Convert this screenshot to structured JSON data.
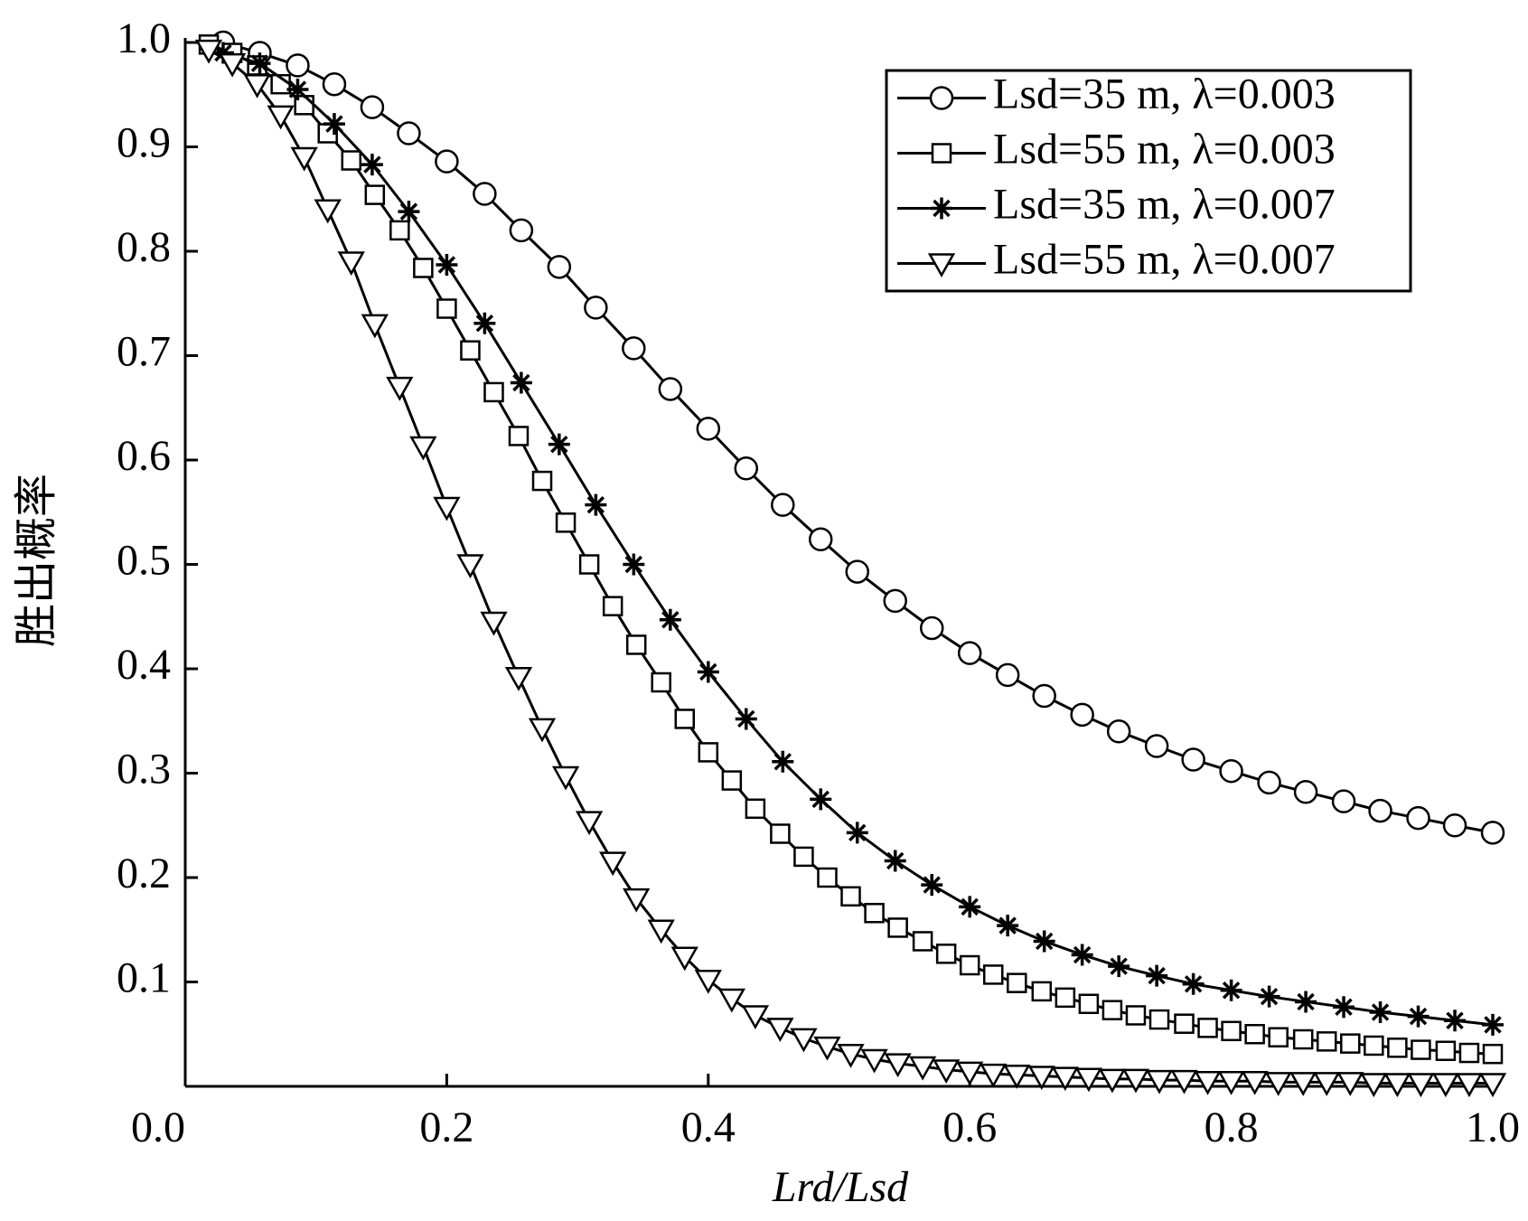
{
  "chart_data": {
    "type": "line",
    "xlabel": "Lrd/Lsd",
    "ylabel": "胜出概率",
    "xlim": [
      0,
      1
    ],
    "ylim": [
      0,
      1
    ],
    "xticks": [
      {
        "value": 0,
        "label": "0.0"
      },
      0.2,
      0.4,
      0.6,
      0.8,
      {
        "value": 1,
        "label": "1.0"
      }
    ],
    "yticks": [
      0.1,
      0.2,
      0.3,
      0.4,
      0.5,
      0.6,
      0.7,
      0.8,
      0.9,
      {
        "value": 1,
        "label": "1.0"
      }
    ],
    "legend": "upper right",
    "series": [
      {
        "name": "Lsd=35 m, λ=0.003",
        "color": "#000000",
        "marker": "circle",
        "x": [
          0.029,
          0.057,
          0.086,
          0.114,
          0.143,
          0.171,
          0.2,
          0.229,
          0.257,
          0.286,
          0.314,
          0.343,
          0.371,
          0.4,
          0.429,
          0.457,
          0.486,
          0.514,
          0.543,
          0.571,
          0.6,
          0.629,
          0.657,
          0.686,
          0.714,
          0.743,
          0.771,
          0.8,
          0.829,
          0.857,
          0.886,
          0.914,
          0.943,
          0.971,
          1.0
        ],
        "values": [
          1.0,
          0.99,
          0.978,
          0.96,
          0.938,
          0.913,
          0.886,
          0.855,
          0.82,
          0.785,
          0.746,
          0.707,
          0.668,
          0.63,
          0.592,
          0.557,
          0.524,
          0.493,
          0.465,
          0.439,
          0.415,
          0.394,
          0.374,
          0.356,
          0.34,
          0.326,
          0.313,
          0.302,
          0.291,
          0.282,
          0.273,
          0.264,
          0.257,
          0.25,
          0.243
        ]
      },
      {
        "name": "Lsd=55 m, λ=0.003",
        "color": "#000000",
        "marker": "square",
        "x": [
          0.018,
          0.036,
          0.055,
          0.073,
          0.091,
          0.109,
          0.127,
          0.145,
          0.164,
          0.182,
          0.2,
          0.218,
          0.236,
          0.255,
          0.273,
          0.291,
          0.309,
          0.327,
          0.345,
          0.364,
          0.382,
          0.4,
          0.418,
          0.436,
          0.455,
          0.473,
          0.491,
          0.509,
          0.527,
          0.545,
          0.564,
          0.582,
          0.6,
          0.618,
          0.636,
          0.655,
          0.673,
          0.691,
          0.709,
          0.727,
          0.745,
          0.764,
          0.782,
          0.8,
          0.818,
          0.836,
          0.855,
          0.873,
          0.891,
          0.909,
          0.927,
          0.945,
          0.964,
          0.982,
          1.0
        ],
        "values": [
          0.998,
          0.99,
          0.978,
          0.96,
          0.94,
          0.913,
          0.887,
          0.854,
          0.82,
          0.784,
          0.745,
          0.705,
          0.665,
          0.623,
          0.58,
          0.54,
          0.5,
          0.46,
          0.423,
          0.387,
          0.352,
          0.32,
          0.293,
          0.266,
          0.242,
          0.22,
          0.2,
          0.182,
          0.166,
          0.152,
          0.139,
          0.127,
          0.116,
          0.107,
          0.099,
          0.091,
          0.085,
          0.079,
          0.073,
          0.068,
          0.064,
          0.06,
          0.056,
          0.053,
          0.05,
          0.047,
          0.045,
          0.043,
          0.041,
          0.039,
          0.037,
          0.035,
          0.034,
          0.032,
          0.031
        ]
      },
      {
        "name": "Lsd=35 m, λ=0.007",
        "color": "#000000",
        "marker": "star",
        "x": [
          0.029,
          0.057,
          0.086,
          0.114,
          0.143,
          0.171,
          0.2,
          0.229,
          0.257,
          0.286,
          0.314,
          0.343,
          0.371,
          0.4,
          0.429,
          0.457,
          0.486,
          0.514,
          0.543,
          0.571,
          0.6,
          0.629,
          0.657,
          0.686,
          0.714,
          0.743,
          0.771,
          0.8,
          0.829,
          0.857,
          0.886,
          0.914,
          0.943,
          0.971,
          1.0
        ],
        "values": [
          0.99,
          0.98,
          0.955,
          0.922,
          0.883,
          0.838,
          0.787,
          0.731,
          0.674,
          0.615,
          0.557,
          0.5,
          0.447,
          0.397,
          0.352,
          0.311,
          0.275,
          0.243,
          0.216,
          0.193,
          0.172,
          0.154,
          0.139,
          0.126,
          0.115,
          0.106,
          0.098,
          0.092,
          0.086,
          0.081,
          0.076,
          0.071,
          0.067,
          0.063,
          0.059
        ]
      },
      {
        "name": "Lsd=55 m, λ=0.007",
        "color": "#000000",
        "marker": "triangle-down",
        "x": [
          0.018,
          0.036,
          0.055,
          0.073,
          0.091,
          0.109,
          0.127,
          0.145,
          0.164,
          0.182,
          0.2,
          0.218,
          0.236,
          0.255,
          0.273,
          0.291,
          0.309,
          0.327,
          0.345,
          0.364,
          0.382,
          0.4,
          0.418,
          0.436,
          0.455,
          0.473,
          0.491,
          0.509,
          0.527,
          0.545,
          0.564,
          0.582,
          0.6,
          0.618,
          0.636,
          0.655,
          0.673,
          0.691,
          0.709,
          0.727,
          0.745,
          0.764,
          0.782,
          0.8,
          0.818,
          0.836,
          0.855,
          0.873,
          0.891,
          0.909,
          0.927,
          0.945,
          0.964,
          0.982,
          1.0
        ],
        "values": [
          0.993,
          0.98,
          0.96,
          0.93,
          0.89,
          0.84,
          0.79,
          0.73,
          0.67,
          0.613,
          0.555,
          0.5,
          0.445,
          0.392,
          0.343,
          0.297,
          0.254,
          0.215,
          0.18,
          0.15,
          0.124,
          0.102,
          0.084,
          0.068,
          0.056,
          0.046,
          0.038,
          0.031,
          0.026,
          0.022,
          0.019,
          0.016,
          0.014,
          0.012,
          0.011,
          0.01,
          0.009,
          0.008,
          0.007,
          0.007,
          0.006,
          0.006,
          0.005,
          0.005,
          0.005,
          0.004,
          0.004,
          0.004,
          0.004,
          0.003,
          0.003,
          0.003,
          0.003,
          0.003,
          0.003
        ]
      }
    ]
  }
}
